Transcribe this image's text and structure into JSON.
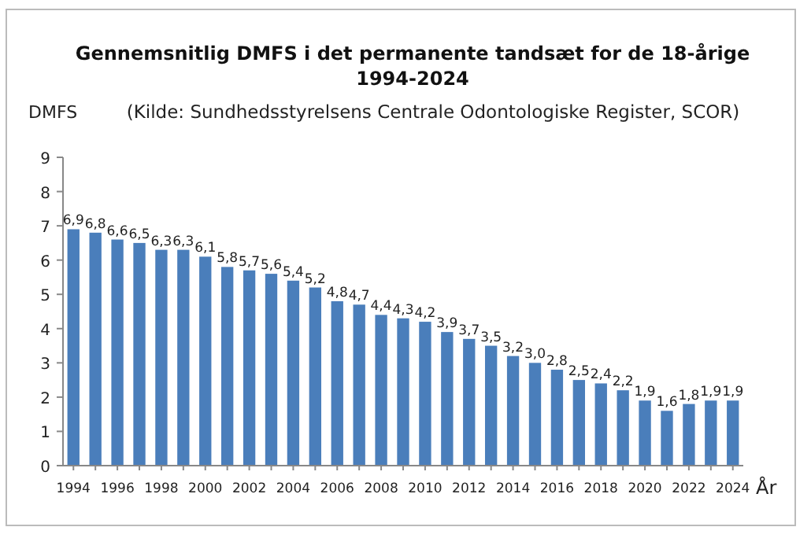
{
  "chart_data": {
    "type": "bar",
    "title": "Gennemsnitlig DMFS i det permanente tandsæt for de 18-årige\n1994-2024",
    "annotations": [
      "(Kilde: Sundhedsstyrelsens Centrale Odontologiske Register, SCOR)"
    ],
    "ylabel": "DMFS",
    "xlabel": "År",
    "categories": [
      "1994",
      null,
      "1996",
      null,
      "1998",
      null,
      "2000",
      null,
      "2002",
      null,
      "2004",
      null,
      "2006",
      null,
      "2008",
      null,
      "2010",
      null,
      "2012",
      null,
      "2014",
      null,
      "2016",
      null,
      "2018",
      null,
      "2020",
      null,
      "2022",
      null,
      "2024"
    ],
    "values": [
      6.9,
      6.8,
      6.6,
      6.5,
      6.3,
      6.3,
      6.1,
      5.8,
      5.7,
      5.6,
      5.4,
      5.2,
      4.8,
      4.7,
      4.4,
      4.3,
      4.2,
      3.9,
      3.7,
      3.5,
      3.2,
      3.0,
      2.8,
      2.5,
      2.4,
      2.2,
      1.9,
      1.6,
      1.8,
      1.9,
      1.9
    ],
    "value_labels": [
      "6,9",
      "6,8",
      "6,6",
      "6,5",
      "6,3",
      "6,3",
      "6,1",
      "5,8",
      "5,7",
      "5,6",
      "5,4",
      "5,2",
      "4,8",
      "4,7",
      "4,4",
      "4,3",
      "4,2",
      "3,9",
      "3,7",
      "3,5",
      "3,2",
      "3,0",
      "2,8",
      "2,5",
      "2,4",
      "2,2",
      "1,9",
      "1,6",
      "1,8",
      "1,9",
      "1,9"
    ],
    "color": "#4a7ebb",
    "ylim": [
      0,
      9
    ],
    "yticks": [
      0,
      1,
      2,
      3,
      4,
      5,
      6,
      7,
      8,
      9
    ],
    "grid": false
  }
}
